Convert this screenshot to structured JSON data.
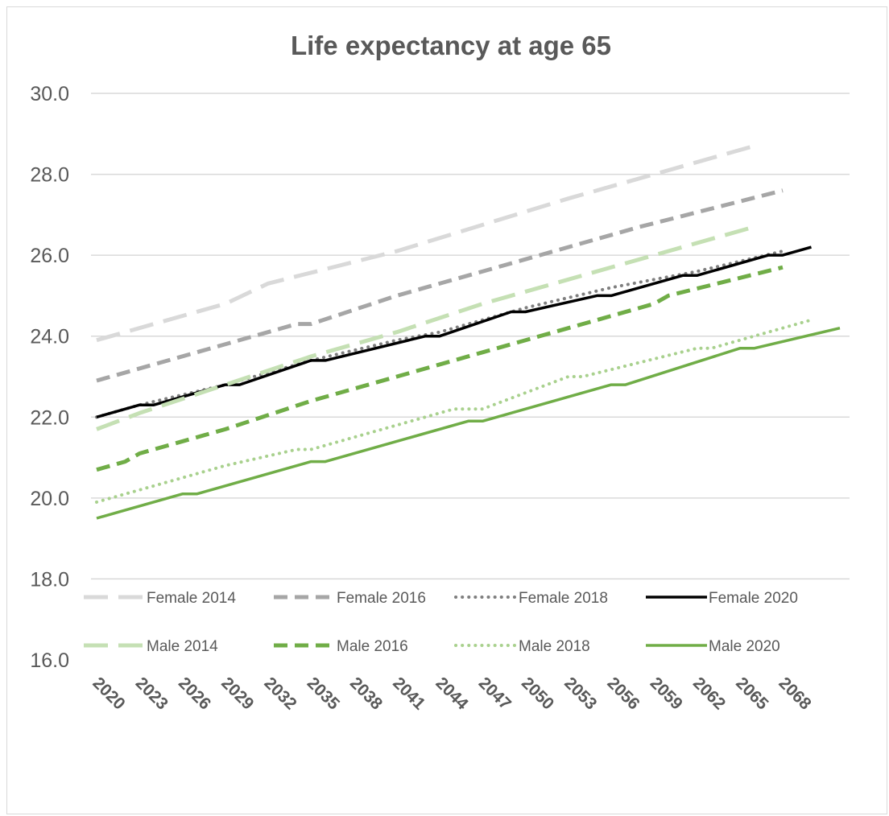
{
  "chart_data": {
    "type": "line",
    "title": "Life expectancy at age 65",
    "xlabel": "",
    "ylabel": "",
    "ylim": [
      16.0,
      30.0
    ],
    "yticks": [
      "16.0",
      "18.0",
      "20.0",
      "22.0",
      "24.0",
      "26.0",
      "28.0",
      "30.0"
    ],
    "xlim": [
      2020,
      2070
    ],
    "xticks": [
      "2020",
      "2023",
      "2026",
      "2029",
      "2032",
      "2035",
      "2038",
      "2041",
      "2044",
      "2047",
      "2050",
      "2053",
      "2056",
      "2059",
      "2062",
      "2065",
      "2068"
    ],
    "grid": true,
    "legend_position": "bottom",
    "series": [
      {
        "name": "Female 2014",
        "color": "#d9d9d9",
        "dash": "long-dash",
        "points": [
          [
            2020,
            23.9
          ],
          [
            2029,
            24.8
          ],
          [
            2032,
            25.3
          ],
          [
            2041,
            26.1
          ],
          [
            2053,
            27.4
          ],
          [
            2059,
            28.0
          ],
          [
            2066,
            28.7
          ]
        ]
      },
      {
        "name": "Female 2016",
        "color": "#a6a6a6",
        "dash": "dash",
        "points": [
          [
            2020,
            22.9
          ],
          [
            2027,
            23.6
          ],
          [
            2034,
            24.3
          ],
          [
            2035,
            24.3
          ],
          [
            2041,
            25.0
          ],
          [
            2050,
            25.9
          ],
          [
            2058,
            26.7
          ],
          [
            2068,
            27.6
          ]
        ]
      },
      {
        "name": "Female 2018",
        "color": "#7f7f7f",
        "dash": "dot",
        "points": [
          [
            2020,
            22.0
          ],
          [
            2023,
            22.3
          ],
          [
            2029,
            22.8
          ],
          [
            2035,
            23.4
          ],
          [
            2041,
            23.9
          ],
          [
            2044,
            24.1
          ],
          [
            2050,
            24.7
          ],
          [
            2056,
            25.2
          ],
          [
            2062,
            25.6
          ],
          [
            2068,
            26.1
          ]
        ]
      },
      {
        "name": "Female 2020",
        "color": "#000000",
        "dash": "solid",
        "points": [
          [
            2020,
            22.0
          ],
          [
            2023,
            22.3
          ],
          [
            2024,
            22.3
          ],
          [
            2029,
            22.8
          ],
          [
            2030,
            22.8
          ],
          [
            2035,
            23.4
          ],
          [
            2036,
            23.4
          ],
          [
            2043,
            24.0
          ],
          [
            2044,
            24.0
          ],
          [
            2049,
            24.6
          ],
          [
            2050,
            24.6
          ],
          [
            2055,
            25.0
          ],
          [
            2056,
            25.0
          ],
          [
            2061,
            25.5
          ],
          [
            2062,
            25.5
          ],
          [
            2067,
            26.0
          ],
          [
            2068,
            26.0
          ],
          [
            2070,
            26.2
          ]
        ]
      },
      {
        "name": "Male 2014",
        "color": "#c5e0b4",
        "dash": "long-dash",
        "points": [
          [
            2020,
            21.7
          ],
          [
            2023,
            22.1
          ],
          [
            2029,
            22.8
          ],
          [
            2035,
            23.5
          ],
          [
            2041,
            24.1
          ],
          [
            2047,
            24.8
          ],
          [
            2053,
            25.4
          ],
          [
            2059,
            26.0
          ],
          [
            2066,
            26.7
          ]
        ]
      },
      {
        "name": "Male 2016",
        "color": "#70ad47",
        "dash": "dash",
        "points": [
          [
            2020,
            20.7
          ],
          [
            2022,
            20.9
          ],
          [
            2023,
            21.1
          ],
          [
            2029,
            21.7
          ],
          [
            2035,
            22.4
          ],
          [
            2041,
            23.0
          ],
          [
            2047,
            23.6
          ],
          [
            2053,
            24.2
          ],
          [
            2059,
            24.8
          ],
          [
            2060,
            25.0
          ],
          [
            2068,
            25.7
          ]
        ]
      },
      {
        "name": "Male 2018",
        "color": "#a9d18e",
        "dash": "dot",
        "points": [
          [
            2020,
            19.9
          ],
          [
            2023,
            20.2
          ],
          [
            2029,
            20.8
          ],
          [
            2034,
            21.2
          ],
          [
            2035,
            21.2
          ],
          [
            2041,
            21.8
          ],
          [
            2045,
            22.2
          ],
          [
            2047,
            22.2
          ],
          [
            2053,
            23.0
          ],
          [
            2054,
            23.0
          ],
          [
            2062,
            23.7
          ],
          [
            2063,
            23.7
          ],
          [
            2066,
            24.0
          ],
          [
            2070,
            24.4
          ]
        ]
      },
      {
        "name": "Male 2020",
        "color": "#70ad47",
        "dash": "solid",
        "points": [
          [
            2020,
            19.5
          ],
          [
            2026,
            20.1
          ],
          [
            2027,
            20.1
          ],
          [
            2028,
            20.2
          ],
          [
            2035,
            20.9
          ],
          [
            2036,
            20.9
          ],
          [
            2046,
            21.9
          ],
          [
            2047,
            21.9
          ],
          [
            2056,
            22.8
          ],
          [
            2057,
            22.8
          ],
          [
            2065,
            23.7
          ],
          [
            2066,
            23.7
          ],
          [
            2072,
            24.2
          ]
        ]
      }
    ]
  }
}
